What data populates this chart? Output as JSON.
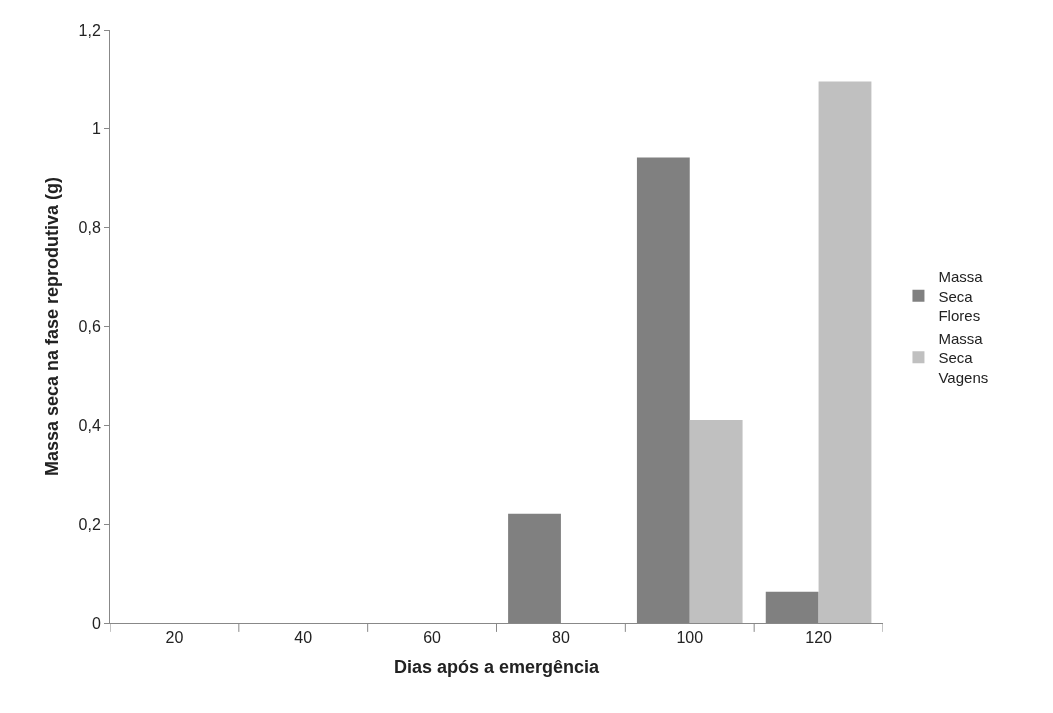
{
  "chart_data": {
    "type": "bar",
    "xlabel": "Dias após a emergência",
    "ylabel": "Massa seca na fase reprodutiva (g)",
    "categories": [
      "20",
      "40",
      "60",
      "80",
      "100",
      "120"
    ],
    "series": [
      {
        "name": "Massa Seca Flores",
        "color": "#808080",
        "values": [
          0,
          0,
          0,
          0.221,
          0.942,
          0.063
        ]
      },
      {
        "name": "Massa Seca Vagens",
        "color": "#c0c0c0",
        "values": [
          0,
          0,
          0,
          0,
          0.411,
          1.096
        ]
      }
    ],
    "ylim": [
      0,
      1.2
    ],
    "yticks": [
      0,
      {
        "value": 0.2,
        "label": "0,2"
      },
      {
        "value": 0.4,
        "label": "0,4"
      },
      {
        "value": 0.6,
        "label": "0,6"
      },
      {
        "value": 0.8,
        "label": "0,8"
      },
      1,
      {
        "value": 1.2,
        "label": "1,2"
      }
    ],
    "legend": "right"
  }
}
